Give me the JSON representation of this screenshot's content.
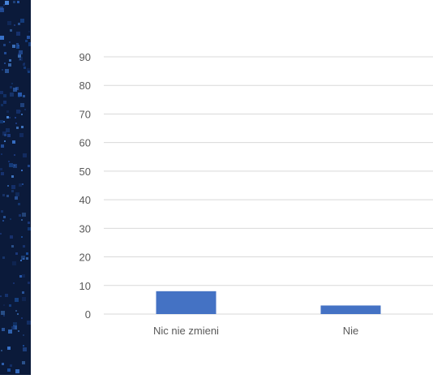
{
  "chart_data": {
    "type": "bar",
    "categories": [
      "Nic nie zmieni",
      "Nie"
    ],
    "values": [
      8,
      3
    ],
    "ylim": [
      0,
      90
    ],
    "yticks": [
      0,
      10,
      20,
      30,
      40,
      50,
      60,
      70,
      80,
      90
    ],
    "grid": true,
    "bar_color": "#4472C4"
  },
  "theme": {
    "strip_color": "#0b1a3a",
    "tick_label_color": "#595959",
    "grid_color": "#d9d9d9"
  }
}
